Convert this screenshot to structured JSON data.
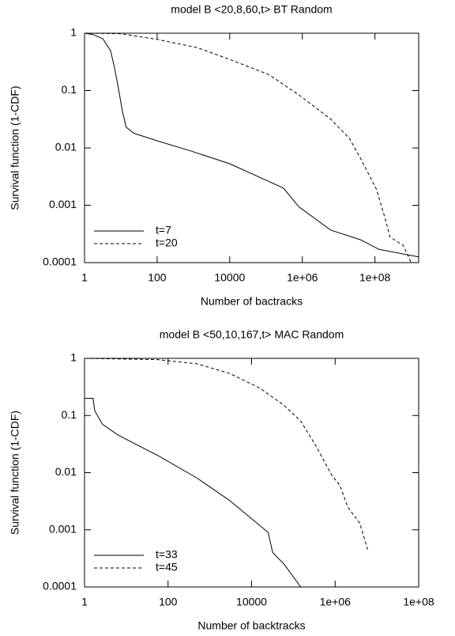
{
  "chart_data": [
    {
      "type": "line",
      "title": "model B <20,8,60,t> BT Random",
      "x_label": "Number of bactracks",
      "y_label": "Survival function (1-CDF)",
      "xscale": "log",
      "yscale": "log",
      "grid": false,
      "legend": "lower left",
      "xlim": [
        1,
        1600000000
      ],
      "ylim": [
        0.0001,
        1
      ],
      "xticks": [
        1,
        100,
        10000,
        {
          "value": 1000000,
          "label": "1e+06"
        },
        {
          "value": 100000000,
          "label": "1e+08"
        }
      ],
      "yticks": [
        0.0001,
        0.001,
        0.01,
        0.1,
        1
      ],
      "series": [
        {
          "name": "t=7",
          "color": "#000000",
          "dashed": false,
          "x": [
            1,
            1.7,
            3.2,
            5.2,
            6.7,
            8.6,
            11,
            14,
            23,
            100,
            780,
            10000,
            120000,
            300000,
            800000,
            6000000,
            40000000,
            130000000,
            1600000000
          ],
          "values": [
            1,
            0.95,
            0.8,
            0.5,
            0.25,
            0.11,
            0.044,
            0.023,
            0.018,
            0.0133,
            0.009,
            0.0053,
            0.0026,
            0.002,
            0.00094,
            0.00037,
            0.00025,
            0.00017,
            0.000126
          ]
        },
        {
          "name": "t=20",
          "color": "#000000",
          "dashed": true,
          "x": [
            1,
            10,
            100,
            1300,
            10000,
            120000,
            800000,
            6000000,
            20000000,
            40000000,
            110000000,
            200000000,
            260000000,
            600000000,
            1000000000
          ],
          "values": [
            1,
            0.98,
            0.78,
            0.56,
            0.35,
            0.19,
            0.084,
            0.032,
            0.0146,
            0.0066,
            0.0019,
            0.00053,
            0.00028,
            0.0002,
            0.0001
          ]
        }
      ]
    },
    {
      "type": "line",
      "title": "model B <50,10,167,t> MAC Random",
      "x_label": "Number  of backtracks",
      "y_label": "Survival function (1-CDF)",
      "xscale": "log",
      "yscale": "log",
      "grid": false,
      "legend": "lower left",
      "xlim": [
        1,
        100000000
      ],
      "ylim": [
        0.0001,
        1
      ],
      "xticks": [
        1,
        100,
        10000,
        {
          "value": 1000000,
          "label": "1e+06"
        },
        {
          "value": 100000000,
          "label": "1e+08"
        }
      ],
      "yticks": [
        0.0001,
        0.001,
        0.01,
        0.1,
        1
      ],
      "series": [
        {
          "name": "t=33",
          "color": "#000000",
          "dashed": false,
          "x": [
            1,
            1.6,
            1.76,
            2.7,
            6.5,
            57,
            500,
            2900,
            10700,
            25000,
            32000,
            60000,
            150000
          ],
          "values": [
            0.2,
            0.2,
            0.12,
            0.07,
            0.045,
            0.02,
            0.008,
            0.0033,
            0.0015,
            0.0009,
            0.0004,
            0.00025,
            0.0001
          ]
        },
        {
          "name": "t=45",
          "color": "#000000",
          "dashed": true,
          "x": [
            1,
            57,
            500,
            2900,
            16000,
            60000,
            150000,
            340000,
            830000,
            1300000,
            2000000,
            3900000,
            6000000
          ],
          "values": [
            1,
            0.95,
            0.8,
            0.55,
            0.3,
            0.15,
            0.08,
            0.03,
            0.009,
            0.006,
            0.0025,
            0.0013,
            0.00045
          ]
        }
      ]
    }
  ]
}
